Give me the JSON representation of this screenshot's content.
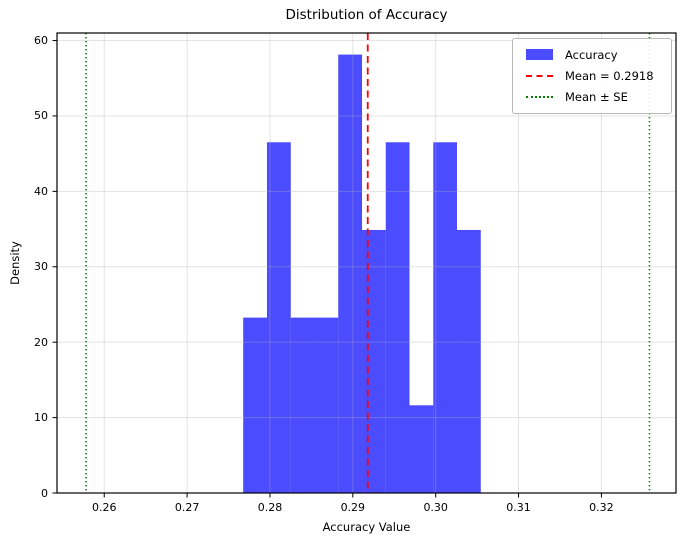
{
  "title": "Distribution of Accuracy",
  "axes": {
    "xlabel": "Accuracy Value",
    "ylabel": "Density"
  },
  "legend": {
    "position": "upper right",
    "items": [
      {
        "type": "patch",
        "color": "rgba(0,0,255,0.7)",
        "label": "Accuracy"
      },
      {
        "type": "dashed",
        "color": "#ff0000",
        "label": "Mean = 0.2918"
      },
      {
        "type": "dotted",
        "color": "#008000",
        "label": "Mean ± SE"
      }
    ]
  },
  "chart_data": {
    "type": "bar",
    "subtype": "histogram",
    "title": "Distribution of Accuracy",
    "xlabel": "Accuracy Value",
    "ylabel": "Density",
    "bin_edges": [
      0.27677,
      0.27964,
      0.28251,
      0.28537,
      0.28824,
      0.29111,
      0.29397,
      0.29684,
      0.29971,
      0.30257,
      0.30544
    ],
    "densities": [
      23.26,
      46.51,
      23.26,
      23.26,
      58.14,
      34.88,
      46.51,
      11.63,
      46.51,
      34.88
    ],
    "counts": [
      2,
      4,
      2,
      2,
      5,
      3,
      4,
      1,
      4,
      3
    ],
    "mean": 0.2918,
    "mean_line": {
      "x": 0.2918,
      "color": "#ff0000",
      "style": "dashed",
      "label": "Mean = 0.2918"
    },
    "se_lines": {
      "x": [
        0.2578,
        0.3258
      ],
      "color": "#008000",
      "style": "dotted",
      "label": "Mean ± SE"
    },
    "bar_color": "rgba(0,0,255,0.7)",
    "grid": true,
    "grid_color": "#b0b0b0",
    "xlim": [
      0.2543,
      0.329
    ],
    "ylim": [
      0,
      61.0
    ],
    "xticks": [
      0.26,
      0.27,
      0.28,
      0.29,
      0.3,
      0.31,
      0.32
    ],
    "xtick_labels": [
      "0.26",
      "0.27",
      "0.28",
      "0.29",
      "0.30",
      "0.31",
      "0.32"
    ],
    "yticks": [
      0,
      10,
      20,
      30,
      40,
      50,
      60
    ],
    "ytick_labels": [
      "0",
      "10",
      "20",
      "30",
      "40",
      "50",
      "60"
    ],
    "legend_position": "upper right"
  }
}
